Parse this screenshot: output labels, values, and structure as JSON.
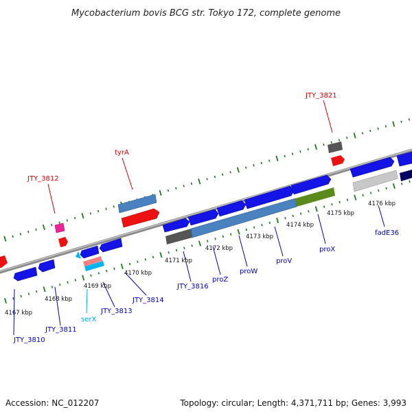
{
  "title": "Mycobacterium bovis BCG str. Tokyo 172, complete genome",
  "colors": {
    "label_red": "#cc0000",
    "label_blue": "#0000bb",
    "label_cyan": "#00aadd",
    "tick_green": "#1a7a1a",
    "backbone": "#8a8a8a",
    "gene_blue": "#1414e6",
    "gene_steel": "#4a82c0",
    "gene_red": "#ee1111",
    "gene_gray": "#555555",
    "gene_light_gray": "#c8c8c8",
    "gene_olive": "#5a8a1a",
    "gene_navy": "#000060",
    "gene_magenta": "#ee2299",
    "gene_pink": "#f08080",
    "gene_cyan": "#00b4f0"
  },
  "ticks": [
    "4167 kbp",
    "4168 kbp",
    "4169 kbp",
    "4170 kbp",
    "4171 kbp",
    "4172 kbp",
    "4173 kbp",
    "4174 kbp",
    "4175 kbp",
    "4176 kbp"
  ],
  "labels_upper": [
    "JTY_3812",
    "tyrA",
    "JTY_3821"
  ],
  "labels_lower": [
    "JTY_3810",
    "JTY_3811",
    "serX",
    "JTY_3813",
    "JTY_3814",
    "JTY_3816",
    "proZ",
    "proW",
    "proV",
    "proX",
    "fadE36"
  ],
  "footer": {
    "accession": "Accession: NC_012207",
    "summary": "Topology: circular; Length: 4,371,711 bp; Genes: 3,993"
  }
}
